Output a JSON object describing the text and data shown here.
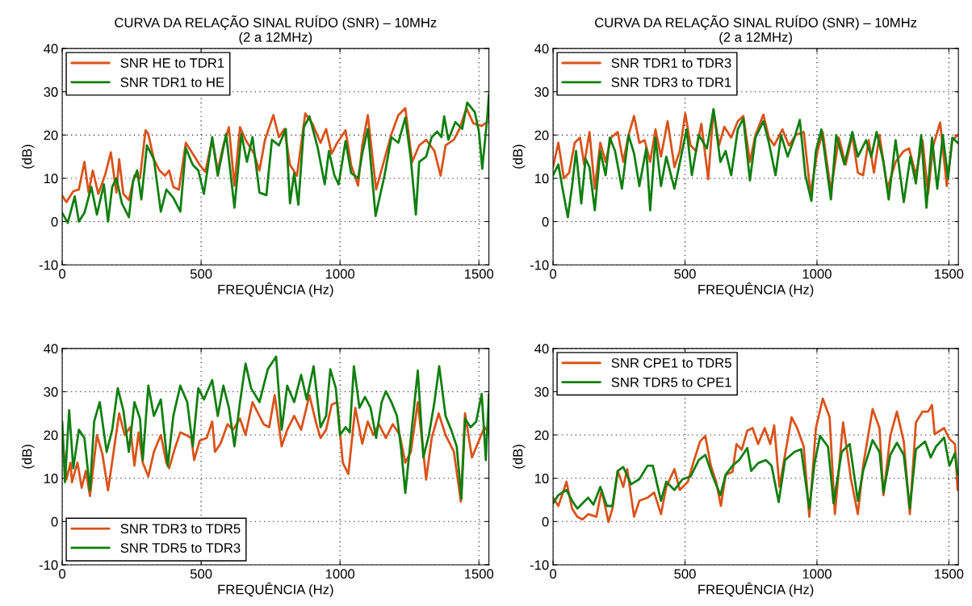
{
  "chart_data": [
    {
      "type": "line",
      "title": "CURVA DA RELAÇÃO SINAL RUÍDO (SNR) – 10MHz\n(2 a 12MHz)",
      "xlabel": "FREQUÊNCIA (Hz)",
      "ylabel": "(dB)",
      "xlim": [
        0,
        1536
      ],
      "xticks": [
        0,
        500,
        1000,
        1500
      ],
      "ylim": [
        -10,
        40
      ],
      "yticks": [
        -10,
        0,
        10,
        20,
        30,
        40
      ],
      "grid": true,
      "legend": "top left",
      "line_style": "solid",
      "marker": "none",
      "series": [
        {
          "name": "SNR HE to TDR1",
          "color": "#d95319",
          "x": [
            0,
            15,
            40,
            60,
            80,
            95,
            110,
            130,
            155,
            175,
            195,
            205,
            220,
            240,
            260,
            280,
            300,
            310,
            330,
            350,
            370,
            385,
            400,
            420,
            445,
            470,
            495,
            515,
            540,
            560,
            580,
            600,
            620,
            640,
            660,
            690,
            710,
            730,
            760,
            780,
            800,
            820,
            845,
            875,
            900,
            930,
            950,
            970,
            990,
            1020,
            1040,
            1065,
            1080,
            1100,
            1130,
            1160,
            1185,
            1210,
            1235,
            1260,
            1285,
            1310,
            1340,
            1362,
            1380,
            1410,
            1430,
            1455,
            1480,
            1510,
            1530
          ],
          "values": [
            6,
            4.5,
            7,
            7.4,
            13.8,
            6.7,
            11.8,
            6.4,
            10.9,
            16,
            6.7,
            14.4,
            6.4,
            5,
            10.6,
            10,
            21.1,
            20.2,
            14.4,
            11.8,
            10.6,
            11.8,
            8,
            7.4,
            18.2,
            15.7,
            13.1,
            11.5,
            18.9,
            11.8,
            17.6,
            21.8,
            8.3,
            21.8,
            18.9,
            15.7,
            11.8,
            18.9,
            24.6,
            19.5,
            21.4,
            13.1,
            10.6,
            25,
            22.7,
            18.2,
            21.4,
            15.7,
            18.2,
            21.1,
            13.1,
            8.3,
            17.6,
            24.6,
            7.4,
            14.4,
            20.2,
            24.6,
            26.2,
            13.8,
            17.6,
            18.9,
            16.3,
            10.6,
            17.6,
            18.9,
            21.4,
            26.2,
            22.7,
            22.1,
            23
          ]
        },
        {
          "name": "SNR TDR1 to HE",
          "color": "#0f7f0f",
          "x": [
            0,
            20,
            45,
            60,
            80,
            105,
            125,
            150,
            165,
            180,
            195,
            215,
            240,
            255,
            270,
            285,
            305,
            330,
            355,
            375,
            400,
            425,
            445,
            470,
            490,
            510,
            540,
            560,
            590,
            620,
            645,
            665,
            685,
            710,
            735,
            755,
            780,
            805,
            820,
            835,
            850,
            870,
            890,
            920,
            945,
            960,
            980,
            995,
            1020,
            1040,
            1065,
            1080,
            1100,
            1128,
            1160,
            1185,
            1210,
            1235,
            1255,
            1273,
            1285,
            1310,
            1330,
            1350,
            1365,
            1375,
            1390,
            1415,
            1440,
            1458,
            1485,
            1500,
            1512,
            1530,
            1536
          ],
          "values": [
            2,
            -0.3,
            5.8,
            0,
            2,
            8,
            1.6,
            8.6,
            0,
            8,
            10,
            4.2,
            1,
            9.3,
            11.8,
            5.1,
            17.6,
            14.4,
            2.3,
            7.4,
            5.5,
            2.3,
            17,
            13.1,
            11.8,
            6.4,
            19.5,
            10.6,
            20.2,
            3.2,
            20.2,
            13.8,
            19.5,
            6.7,
            6.1,
            18.9,
            17.6,
            21.4,
            4.2,
            11.2,
            3.9,
            21.8,
            24.3,
            17,
            8.6,
            16.3,
            10.6,
            8.6,
            18.6,
            11.2,
            10,
            15.7,
            21.4,
            1.3,
            10.6,
            19.5,
            18.2,
            24,
            14.4,
            1.6,
            13.8,
            15,
            19.5,
            20.8,
            19.5,
            24.3,
            18.9,
            23,
            21.4,
            27.5,
            25.3,
            20.8,
            12.2,
            24,
            29.4
          ]
        }
      ]
    },
    {
      "type": "line",
      "title": "CURVA DA RELAÇÃO SINAL RUÍDO (SNR) – 10MHz\n(2 a 12MHz)",
      "xlabel": "FREQUÊNCIA (Hz)",
      "ylabel": "(dB)",
      "xlim": [
        0,
        1536
      ],
      "xticks": [
        0,
        500,
        1000,
        1500
      ],
      "ylim": [
        -10,
        40
      ],
      "yticks": [
        -10,
        0,
        10,
        20,
        30,
        40
      ],
      "grid": true,
      "legend": "top left",
      "line_style": "solid",
      "marker": "none",
      "series": [
        {
          "name": "SNR TDR1 to TDR3",
          "color": "#d95319",
          "x": [
            0,
            20,
            41,
            61,
            82,
            102,
            118,
            138,
            158,
            179,
            199,
            220,
            245,
            266,
            286,
            307,
            327,
            347,
            368,
            388,
            409,
            434,
            460,
            480,
            501,
            521,
            542,
            562,
            588,
            608,
            629,
            649,
            675,
            700,
            721,
            746,
            767,
            797,
            818,
            838,
            869,
            894,
            920,
            950,
            976,
            1002,
            1022,
            1053,
            1083,
            1109,
            1134,
            1155,
            1175,
            1196,
            1216,
            1237,
            1267,
            1298,
            1329,
            1349,
            1375,
            1400,
            1421,
            1441,
            1467,
            1492,
            1513,
            1533
          ],
          "values": [
            12.6,
            18.2,
            10,
            11.3,
            18.2,
            19.4,
            13.2,
            20.7,
            7.6,
            18.2,
            13.8,
            19.4,
            20.7,
            13.8,
            20,
            24.4,
            18.2,
            18.8,
            13.8,
            21.3,
            15,
            23.2,
            12.6,
            16.3,
            25,
            17.6,
            16.3,
            22.6,
            9.8,
            25.7,
            17.6,
            21.9,
            19.4,
            23.2,
            24.4,
            13.8,
            20,
            24.7,
            19.4,
            17.6,
            21.3,
            17.6,
            20,
            20.7,
            6.4,
            16.3,
            20.7,
            7,
            19.4,
            13.2,
            20,
            11.3,
            10.7,
            18.8,
            11.3,
            20,
            7.6,
            13.8,
            16.3,
            16.9,
            10.7,
            18.8,
            6.4,
            17.6,
            22.9,
            8.2,
            18.8,
            20
          ]
        },
        {
          "name": "SNR TDR3 to TDR1",
          "color": "#0f7f0f",
          "x": [
            0,
            20,
            36,
            56,
            72,
            87,
            107,
            123,
            138,
            158,
            179,
            199,
            215,
            235,
            261,
            286,
            307,
            327,
            353,
            368,
            388,
            409,
            429,
            460,
            485,
            506,
            526,
            552,
            583,
            608,
            634,
            654,
            675,
            700,
            721,
            746,
            767,
            797,
            818,
            843,
            864,
            889,
            915,
            935,
            956,
            979,
            996,
            1017,
            1053,
            1073,
            1104,
            1134,
            1155,
            1186,
            1206,
            1226,
            1252,
            1272,
            1298,
            1329,
            1354,
            1375,
            1395,
            1415,
            1436,
            1456,
            1477,
            1497,
            1513,
            1533
          ],
          "values": [
            10.7,
            13.2,
            7.6,
            1,
            8.2,
            16.3,
            4.2,
            14.5,
            12.6,
            2.6,
            16.3,
            10.7,
            19.4,
            16.3,
            7.6,
            20,
            15.7,
            8.2,
            16.9,
            2.6,
            19.4,
            8.2,
            15,
            7.6,
            15,
            21.3,
            10.7,
            20,
            16.9,
            26,
            13.8,
            16.3,
            10.7,
            21.3,
            23.8,
            9.5,
            19.4,
            23.2,
            18.2,
            10.7,
            20,
            15,
            19.4,
            23.5,
            10.7,
            4.8,
            16.3,
            21.3,
            5.1,
            20,
            13.2,
            20.7,
            15,
            18.8,
            15,
            20.7,
            13.8,
            5.1,
            18.8,
            4.5,
            15,
            8.8,
            20,
            3.2,
            19.4,
            7.6,
            20,
            10,
            19.4,
            18.2
          ]
        }
      ]
    },
    {
      "type": "line",
      "xlabel": "FREQUÊNCIA (Hz)",
      "ylabel": "(dB)",
      "xlim": [
        0,
        1536
      ],
      "xticks": [
        0,
        500,
        1000,
        1500
      ],
      "ylim": [
        -10,
        40
      ],
      "yticks": [
        -10,
        0,
        10,
        20,
        30,
        40
      ],
      "grid": true,
      "legend": "bottom left",
      "line_style": "solid",
      "marker": "none",
      "series": [
        {
          "name": "SNR TDR3 to TDR5",
          "color": "#d95319",
          "x": [
            0,
            15,
            30,
            35,
            55,
            70,
            85,
            100,
            125,
            145,
            165,
            185,
            205,
            225,
            245,
            260,
            275,
            290,
            310,
            330,
            355,
            375,
            385,
            405,
            425,
            445,
            465,
            475,
            495,
            520,
            540,
            550,
            570,
            595,
            615,
            640,
            660,
            685,
            705,
            725,
            745,
            765,
            790,
            810,
            835,
            860,
            890,
            915,
            930,
            950,
            970,
            990,
            1010,
            1030,
            1055,
            1080,
            1100,
            1120,
            1140,
            1165,
            1190,
            1215,
            1235,
            1255,
            1280,
            1300,
            1310,
            1330,
            1355,
            1380,
            1410,
            1435,
            1450,
            1475,
            1500,
            1520,
            1536
          ],
          "values": [
            20,
            9.7,
            13.6,
            9.1,
            13.6,
            7.8,
            11.7,
            5.9,
            20,
            15.5,
            7.2,
            16.1,
            25,
            20,
            21.8,
            12.9,
            20.6,
            13.6,
            10.4,
            16.1,
            20,
            13.6,
            12.3,
            16.8,
            20.6,
            20,
            19.3,
            14.2,
            18.7,
            19.3,
            23.1,
            16.1,
            18,
            22.5,
            21.2,
            23.8,
            20,
            27.6,
            25,
            22.5,
            21.8,
            29.2,
            17.4,
            21.2,
            24.4,
            21.2,
            29.2,
            22.5,
            19.3,
            21.2,
            27,
            27.6,
            13.6,
            11,
            26.3,
            18,
            23.1,
            20,
            22.5,
            19.3,
            22.5,
            20,
            13.6,
            16.1,
            27.6,
            16.1,
            9.7,
            19.3,
            25,
            20,
            16.1,
            4.6,
            25,
            14.8,
            18.7,
            21.8,
            20.6
          ]
        },
        {
          "name": "SNR TDR5 to TDR3",
          "color": "#0f7f0f",
          "x": [
            0,
            10,
            25,
            40,
            60,
            80,
            100,
            115,
            135,
            160,
            180,
            200,
            220,
            240,
            260,
            280,
            290,
            310,
            330,
            355,
            380,
            400,
            425,
            450,
            470,
            490,
            510,
            540,
            560,
            580,
            600,
            620,
            640,
            660,
            680,
            710,
            740,
            770,
            790,
            810,
            835,
            860,
            880,
            905,
            930,
            950,
            965,
            985,
            1000,
            1020,
            1035,
            1050,
            1070,
            1090,
            1110,
            1130,
            1150,
            1165,
            1185,
            1205,
            1220,
            1235,
            1255,
            1280,
            1300,
            1320,
            1340,
            1357,
            1380,
            1400,
            1420,
            1437,
            1450,
            1470,
            1490,
            1510,
            1525,
            1536
          ],
          "values": [
            23.1,
            9.1,
            25.7,
            12.3,
            21.2,
            19.3,
            7.2,
            23.1,
            27.6,
            16.1,
            21.2,
            30.8,
            25.7,
            16.1,
            27.6,
            23.8,
            14.2,
            31.4,
            24.4,
            28.2,
            12.9,
            24.4,
            31.4,
            27.6,
            17.4,
            30.8,
            28.2,
            32.7,
            24.4,
            31.4,
            26.3,
            17.4,
            27.6,
            36.5,
            30.8,
            27.6,
            35.2,
            38.1,
            21.2,
            31.4,
            27.6,
            33.9,
            28.2,
            35.9,
            21.8,
            24.4,
            35.2,
            30.8,
            20,
            21.8,
            20.6,
            35.9,
            26.3,
            28.8,
            26.3,
            19.3,
            27.6,
            30.1,
            27.6,
            24.4,
            16.8,
            6.6,
            19.3,
            34.9,
            14.8,
            20,
            27.6,
            35.9,
            24.4,
            21.2,
            17.4,
            5.3,
            23.8,
            21.8,
            23.1,
            29.5,
            14.2,
            29.5
          ]
        }
      ]
    },
    {
      "type": "line",
      "xlabel": "FREQUÊNCIA (Hz)",
      "ylabel": "(dB)",
      "xlim": [
        0,
        1536
      ],
      "xticks": [
        0,
        500,
        1000,
        1500
      ],
      "ylim": [
        -10,
        40
      ],
      "yticks": [
        -10,
        0,
        10,
        20,
        30,
        40
      ],
      "grid": true,
      "legend": "top left",
      "line_style": "solid",
      "marker": "none",
      "series": [
        {
          "name": "SNR CPE1 to TDR5",
          "color": "#d95319",
          "x": [
            0,
            20,
            51,
            72,
            92,
            112,
            133,
            164,
            184,
            210,
            225,
            245,
            266,
            281,
            307,
            327,
            358,
            383,
            409,
            429,
            460,
            480,
            511,
            531,
            557,
            577,
            598,
            618,
            636,
            654,
            680,
            695,
            715,
            736,
            756,
            777,
            802,
            823,
            838,
            858,
            879,
            904,
            925,
            950,
            971,
            996,
            1022,
            1048,
            1068,
            1099,
            1129,
            1155,
            1175,
            1211,
            1237,
            1252,
            1278,
            1303,
            1329,
            1352,
            1375,
            1400,
            1421,
            1436,
            1446,
            1482,
            1502,
            1523,
            1533
          ],
          "values": [
            5.5,
            3.6,
            9.2,
            3,
            1.1,
            0.5,
            1.7,
            1.1,
            7.3,
            -0.1,
            3,
            11.7,
            8,
            12.1,
            1.1,
            4.8,
            5.5,
            6.7,
            1.7,
            8,
            12.1,
            7.3,
            9.2,
            13.5,
            18.5,
            19.8,
            12.9,
            9.2,
            3.6,
            10.8,
            11.5,
            17.9,
            16.6,
            21,
            21.6,
            17.9,
            21.6,
            17.9,
            22.2,
            8,
            15.4,
            24.1,
            21.6,
            17.3,
            1.1,
            21.6,
            28.4,
            24.1,
            1.7,
            22.9,
            9.8,
            1.7,
            12.9,
            26,
            21.6,
            6.1,
            19.8,
            25.4,
            18.5,
            1.7,
            22.9,
            25.4,
            25.4,
            26.9,
            20.2,
            21.6,
            19.1,
            17.9,
            7.3
          ]
        },
        {
          "name": "SNR TDR5 to CPE1",
          "color": "#0f7f0f",
          "x": [
            0,
            20,
            51,
            72,
            92,
            133,
            153,
            179,
            204,
            225,
            245,
            266,
            296,
            327,
            358,
            378,
            409,
            429,
            460,
            491,
            521,
            552,
            577,
            603,
            634,
            654,
            680,
            705,
            736,
            751,
            777,
            807,
            828,
            855,
            879,
            915,
            940,
            971,
            991,
            1012,
            1027,
            1042,
            1063,
            1094,
            1124,
            1155,
            1175,
            1211,
            1237,
            1252,
            1278,
            1303,
            1329,
            1352,
            1375,
            1410,
            1431,
            1451,
            1482,
            1502,
            1523,
            1533
          ],
          "values": [
            4.2,
            6.1,
            7.3,
            4.8,
            3,
            5.5,
            3.9,
            8,
            3.6,
            3.6,
            11.7,
            12.6,
            8.6,
            9.8,
            12.9,
            12.9,
            4.8,
            9.2,
            7.3,
            9.8,
            10.4,
            14.2,
            15.4,
            10.8,
            6.1,
            10.8,
            12.9,
            14.2,
            17,
            11.7,
            13.5,
            14.2,
            12.9,
            4.5,
            14.2,
            16.1,
            16.7,
            3,
            13.5,
            19.8,
            18.5,
            17.3,
            4.2,
            16.1,
            17.9,
            4.8,
            11.7,
            18.8,
            16.1,
            6.7,
            15.4,
            18.2,
            15.4,
            3,
            16.7,
            18.5,
            14.8,
            17.3,
            19.4,
            12.9,
            15.8,
            10.8
          ]
        }
      ]
    }
  ]
}
